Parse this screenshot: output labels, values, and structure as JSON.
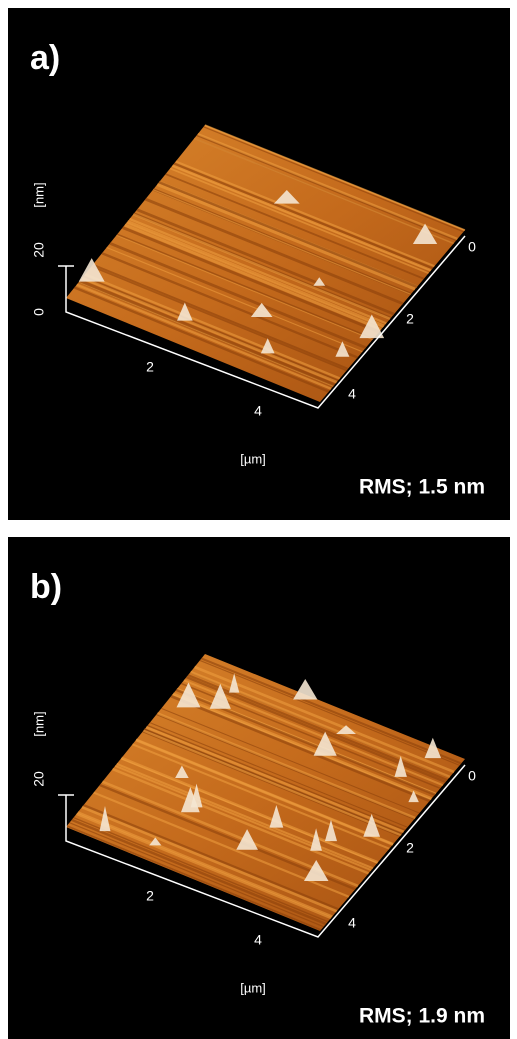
{
  "panels": [
    {
      "label": "a)",
      "z_axis": {
        "unit": "[nm]",
        "ticks": [
          "20",
          "0"
        ]
      },
      "x_axis": {
        "unit": "[µm]",
        "ticks": [
          "2",
          "4"
        ]
      },
      "y_axis": {
        "ticks": [
          "0",
          "2",
          "4"
        ]
      },
      "rms": "RMS; 1.5 nm"
    },
    {
      "label": "b)",
      "z_axis": {
        "unit": "[nm]",
        "ticks": [
          "20"
        ]
      },
      "x_axis": {
        "unit": "[µm]",
        "ticks": [
          "2",
          "4"
        ]
      },
      "y_axis": {
        "ticks": [
          "0",
          "2",
          "4"
        ]
      },
      "rms": "RMS; 1.9 nm"
    }
  ]
}
